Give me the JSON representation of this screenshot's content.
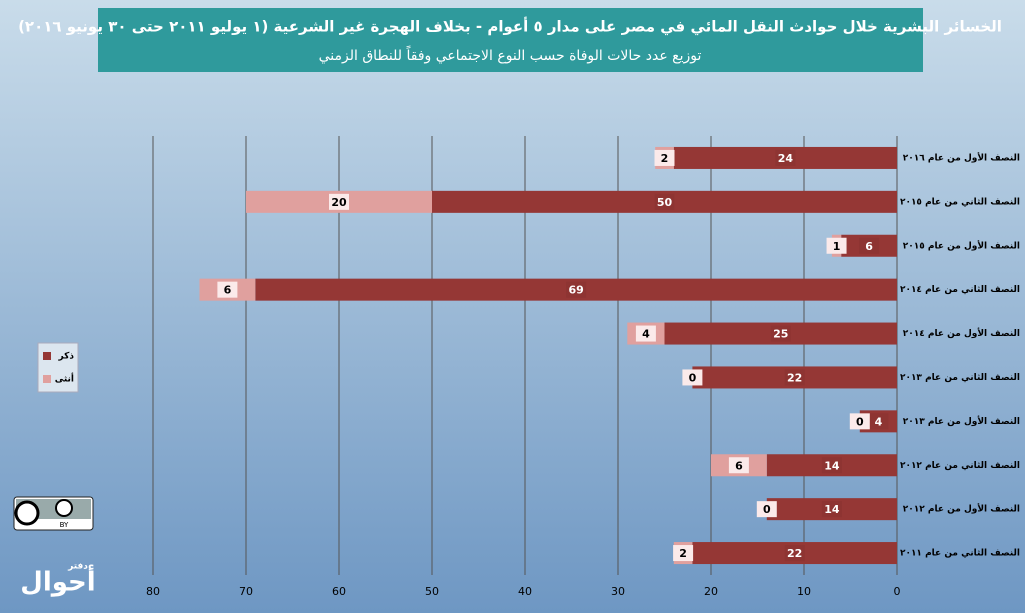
{
  "chart_data": {
    "type": "stacked-barh",
    "title": "الخسائر البشرية خلال حوادث النقل المائي في مصر على مدار ٥ أعوام - بخلاف الهجرة غير الشرعية (١ يوليو ٢٠١١ حتى ٣٠ يونيو ٢٠١٦)",
    "subtitle": "توزيع عدد حالات الوفاة حسب النوع الاجتماعي وفقاً للنطاق الزمني",
    "categories": [
      "النصف الأول من عام ٢٠١٦",
      "النصف الثاني من عام ٢٠١٥",
      "النصف الأول من عام ٢٠١٥",
      "النصف الثاني من عام ٢٠١٤",
      "النصف الأول من عام ٢٠١٤",
      "النصف الثاني من عام ٢٠١٣",
      "النصف الأول من عام ٢٠١٣",
      "النصف الثاني من عام ٢٠١٢",
      "النصف الأول من عام ٢٠١٢",
      "النصف الثاني من عام ٢٠١١"
    ],
    "series": [
      {
        "name": "ذكر",
        "color": "#953735",
        "values": [
          24,
          50,
          6,
          69,
          25,
          22,
          4,
          14,
          14,
          22
        ]
      },
      {
        "name": "أنثى",
        "color": "#e0a09e",
        "values": [
          2,
          20,
          1,
          6,
          4,
          0,
          0,
          6,
          0,
          2
        ]
      }
    ],
    "xlim": [
      0,
      80
    ],
    "xticks": [
      0,
      10,
      20,
      30,
      40,
      50,
      60,
      70,
      80
    ],
    "x_reversed": true,
    "grid": true,
    "legend": "left"
  },
  "badge_text": "BY",
  "logo_text": [
    "دفتر",
    "أحوال"
  ]
}
